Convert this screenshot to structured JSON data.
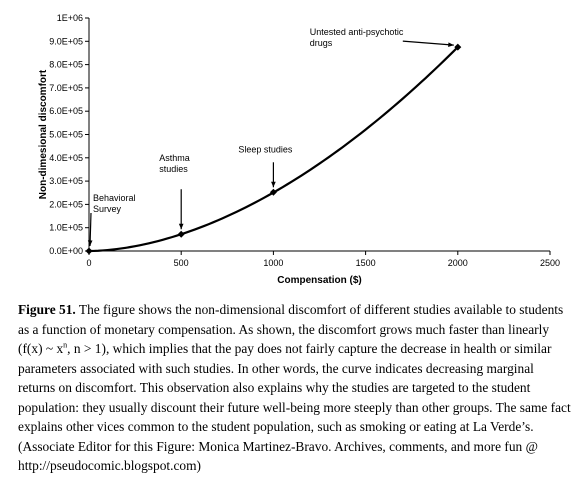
{
  "chart_data": {
    "type": "scatter",
    "xlabel": "Compensation ($)",
    "ylabel": "Non-dimesional discomfort",
    "xlim": [
      0,
      2500
    ],
    "ylim": [
      0,
      1000000
    ],
    "x_ticks": [
      0,
      500,
      1000,
      1500,
      2000,
      2500
    ],
    "y_ticks": [
      0,
      100000,
      200000,
      300000,
      400000,
      500000,
      600000,
      700000,
      800000,
      900000,
      1000000
    ],
    "x_tick_labels": [
      "0",
      "500",
      "1000",
      "1500",
      "2000",
      "2500"
    ],
    "y_tick_labels": [
      "0.0E+00",
      "1.0E+05",
      "2.0E+05",
      "3.0E+05",
      "4.0E+05",
      "5.0E+05",
      "6.0E+05",
      "7.0E+05",
      "8.0E+05",
      "9.0E+05",
      "1E+06"
    ],
    "grid": false,
    "series": [
      {
        "points": [
          {
            "x": 0,
            "y": 0
          },
          {
            "x": 500,
            "y": 72000
          },
          {
            "x": 1000,
            "y": 252000
          },
          {
            "x": 2000,
            "y": 875000
          }
        ],
        "line": "smooth"
      }
    ],
    "annotations": [
      {
        "lines": [
          "Behavioral",
          "Survey"
        ],
        "x": 0,
        "y": 0
      },
      {
        "lines": [
          "Asthma",
          "studies"
        ],
        "x": 500,
        "y": 72000
      },
      {
        "lines": [
          "Sleep studies"
        ],
        "x": 1000,
        "y": 252000
      },
      {
        "lines": [
          "Untested anti-psychotic",
          "drugs"
        ],
        "x": 2000,
        "y": 875000
      }
    ]
  },
  "caption": {
    "label": "Figure 51.",
    "text_before_formula": " The figure shows the non-dimensional discomfort of different studies available to students as a function of monetary compensation. As shown, the discomfort grows much faster than linearly (f(x) ~ x",
    "formula_exponent": "n",
    "text_after_formula": ", n > 1), which implies that the pay does not fairly capture the decrease in health or similar parameters associated with such studies. In other words, the curve indicates decreasing marginal returns on discomfort. This observation also explains why the studies are targeted to the student population: they usually discount their future well-being more steeply than other groups. The same fact explains other vices common to the student population, such as smoking or eating at La Verde’s. (Associate Editor for this Figure: Monica Martinez-Bravo. Archives, comments, and more fun @ http://pseudocomic.blogspot.com)"
  }
}
